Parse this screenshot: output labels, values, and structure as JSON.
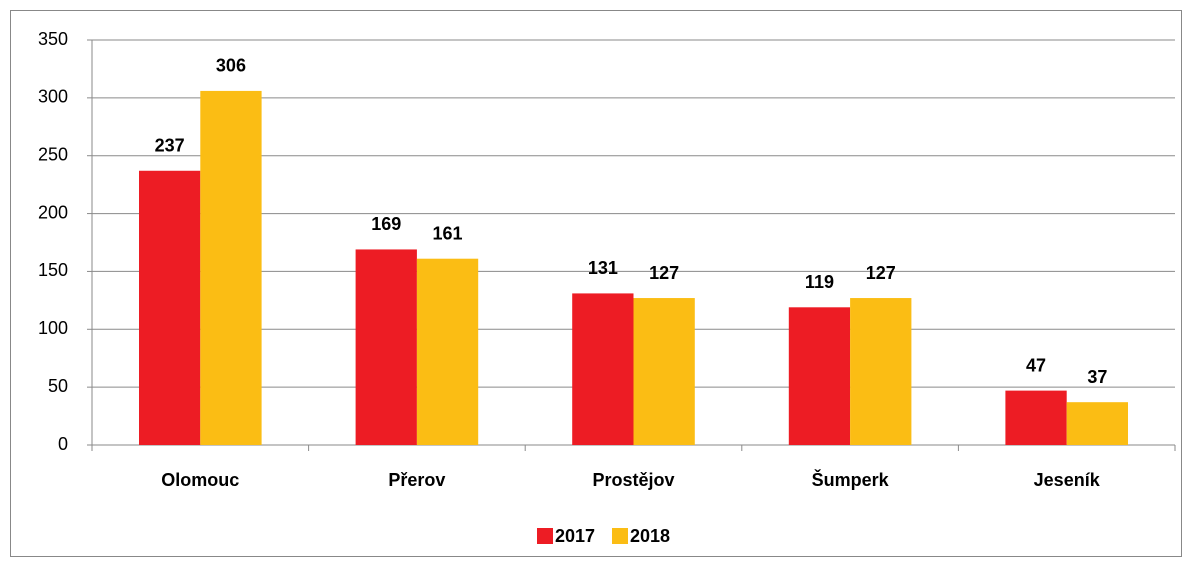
{
  "chart_data": {
    "type": "bar",
    "categories": [
      "Olomouc",
      "Přerov",
      "Prostějov",
      "Šumperk",
      "Jeseník"
    ],
    "series": [
      {
        "name": "2017",
        "color": "#ed1c24",
        "values": [
          237,
          169,
          131,
          119,
          47
        ]
      },
      {
        "name": "2018",
        "color": "#fbbd14",
        "values": [
          306,
          161,
          127,
          127,
          37
        ]
      }
    ],
    "ylim": [
      0,
      350
    ],
    "yticks": [
      0,
      50,
      100,
      150,
      200,
      250,
      300,
      350
    ],
    "grid": true,
    "legend": "bottom"
  }
}
